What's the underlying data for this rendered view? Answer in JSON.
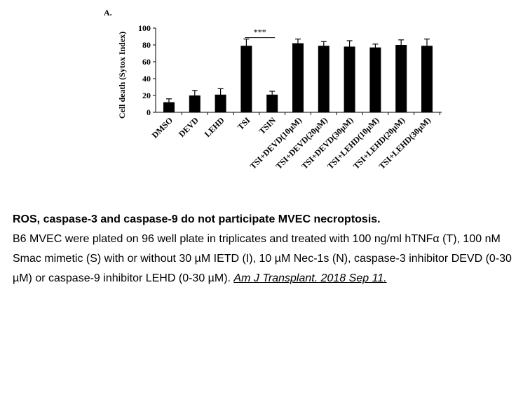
{
  "chart_data": {
    "type": "bar",
    "panel_label": "A.",
    "ylabel": "Cell death (Sytox Index)",
    "xlabel": "",
    "ylim": [
      0,
      100
    ],
    "yticks": [
      0,
      20,
      40,
      60,
      80,
      100
    ],
    "categories": [
      "DMSO",
      "DEVD",
      "LEHD",
      "TSI",
      "TSIN",
      "TSI+DEVD(10µM)",
      "TSI+DEVD(20µM)",
      "TSI+DEVD(30µM)",
      "TSI+LEHD(10µM)",
      "TSI+LEHD(20µM)",
      "TSI+LEHD(30µM)"
    ],
    "values": [
      12,
      20,
      21,
      79,
      21,
      82,
      79,
      78,
      77,
      80,
      79
    ],
    "errors": [
      4,
      6,
      7,
      8,
      4,
      5,
      5,
      7,
      4,
      6,
      8
    ],
    "annotation": {
      "text": "***",
      "between": [
        3,
        4
      ]
    },
    "bar_color": "#000000",
    "grid": false,
    "legend": "none"
  },
  "caption": {
    "title": "ROS, caspase-3 and caspase-9 do not participate MVEC necroptosis.",
    "body": "B6 MVEC were plated on 96 well plate in triplicates and treated with 100 ng/ml hTNFα (T), 100 nM Smac mimetic (S) with or without 30 µM IETD (I), 10 µM Nec-1s (N), caspase-3 inhibitor DEVD (0-30 µM) or caspase-9 inhibitor LEHD (0-30 µM). ",
    "citation": "Am J Transplant. 2018 Sep 11."
  }
}
